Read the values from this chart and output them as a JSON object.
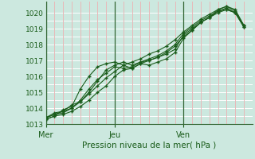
{
  "xlabel": "Pression niveau de la mer( hPa )",
  "ylim": [
    1013,
    1020.7
  ],
  "xlim": [
    0,
    72
  ],
  "yticks": [
    1013,
    1014,
    1015,
    1016,
    1017,
    1018,
    1019,
    1020
  ],
  "xtick_positions": [
    0,
    24,
    48
  ],
  "xtick_labels": [
    "Mer",
    "Jeu",
    "Ven"
  ],
  "vlines": [
    0,
    24,
    48
  ],
  "bg_color": "#cce8df",
  "grid_color_h": "#ffffff",
  "grid_color_v": "#e8b8b8",
  "line_color": "#1a5c1a",
  "series": [
    [
      0,
      1013.4,
      3,
      1013.7,
      6,
      1013.8,
      9,
      1014.2,
      12,
      1014.4,
      15,
      1014.9,
      18,
      1015.4,
      21,
      1015.9,
      24,
      1016.3,
      27,
      1016.7,
      30,
      1016.9,
      33,
      1017.1,
      36,
      1017.4,
      39,
      1017.6,
      42,
      1017.9,
      45,
      1018.3,
      48,
      1018.8,
      51,
      1019.2,
      54,
      1019.6,
      57,
      1019.9,
      60,
      1020.2,
      63,
      1020.4,
      66,
      1020.2,
      69,
      1019.2
    ],
    [
      0,
      1013.4,
      3,
      1013.6,
      6,
      1013.7,
      9,
      1014.0,
      12,
      1014.4,
      15,
      1015.0,
      18,
      1015.7,
      21,
      1016.4,
      24,
      1016.7,
      27,
      1016.9,
      30,
      1016.7,
      33,
      1016.9,
      36,
      1017.0,
      39,
      1017.2,
      42,
      1017.4,
      45,
      1017.7,
      48,
      1018.6,
      51,
      1019.0,
      54,
      1019.4,
      57,
      1019.7,
      60,
      1020.1,
      63,
      1020.2,
      66,
      1020.0,
      69,
      1019.1
    ],
    [
      0,
      1013.3,
      3,
      1013.5,
      6,
      1013.9,
      9,
      1014.1,
      12,
      1015.2,
      15,
      1016.0,
      18,
      1016.6,
      21,
      1016.8,
      24,
      1016.9,
      27,
      1016.7,
      30,
      1016.5,
      33,
      1016.8,
      36,
      1016.7,
      39,
      1016.9,
      42,
      1017.1,
      45,
      1017.5,
      48,
      1018.4,
      51,
      1018.9,
      54,
      1019.4,
      57,
      1019.7,
      60,
      1020.2,
      63,
      1020.4,
      66,
      1020.1,
      69,
      1019.2
    ],
    [
      0,
      1013.3,
      3,
      1013.5,
      6,
      1013.6,
      9,
      1013.8,
      12,
      1014.1,
      15,
      1014.5,
      18,
      1015.0,
      21,
      1015.4,
      24,
      1016.0,
      27,
      1016.4,
      30,
      1016.5,
      33,
      1016.8,
      36,
      1017.0,
      39,
      1017.2,
      42,
      1017.5,
      45,
      1017.9,
      48,
      1018.5,
      51,
      1018.9,
      54,
      1019.4,
      57,
      1019.7,
      60,
      1020.0,
      63,
      1020.2,
      66,
      1020.0,
      69,
      1019.1
    ],
    [
      0,
      1013.4,
      3,
      1013.6,
      6,
      1013.8,
      9,
      1014.0,
      12,
      1014.5,
      15,
      1015.2,
      18,
      1015.8,
      21,
      1016.2,
      24,
      1016.6,
      27,
      1016.5,
      30,
      1016.6,
      33,
      1016.9,
      36,
      1017.1,
      39,
      1017.3,
      42,
      1017.6,
      45,
      1018.0,
      48,
      1018.7,
      51,
      1019.1,
      54,
      1019.5,
      57,
      1019.8,
      60,
      1020.1,
      63,
      1020.3,
      66,
      1020.0,
      69,
      1019.2
    ]
  ]
}
